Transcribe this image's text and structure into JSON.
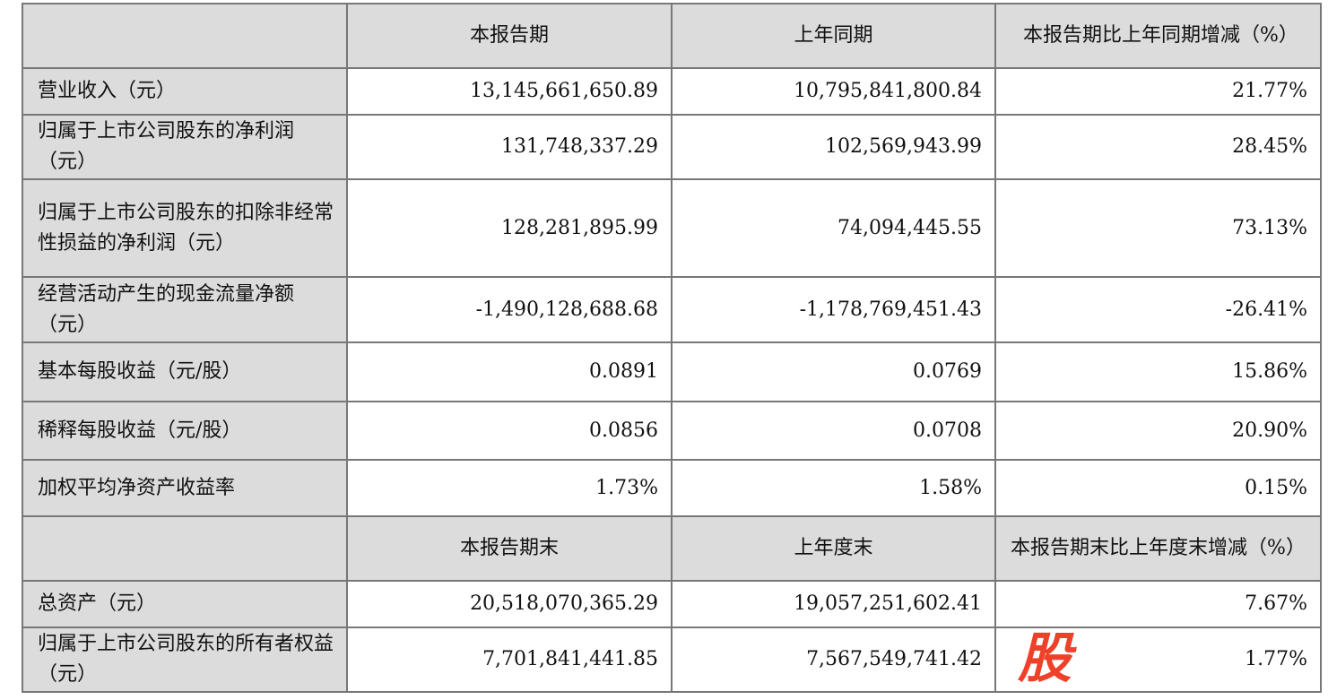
{
  "header1": {
    "col1": "",
    "col2": "本报告期",
    "col3": "上年同期",
    "col4": "本报告期比上年同期增减（%）"
  },
  "rows1": [
    {
      "label": "营业收入（元）",
      "current": "13,145,661,650.89",
      "prior": "10,795,841,800.84",
      "change": "21.77%"
    },
    {
      "label": "归属于上市公司股东的净利润（元）",
      "current": "131,748,337.29",
      "prior": "102,569,943.99",
      "change": "28.45%"
    },
    {
      "label": "归属于上市公司股东的扣除非经常性损益的净利润（元）",
      "current": "128,281,895.99",
      "prior": "74,094,445.55",
      "change": "73.13%"
    },
    {
      "label": "经营活动产生的现金流量净额（元）",
      "current": "-1,490,128,688.68",
      "prior": "-1,178,769,451.43",
      "change": "-26.41%"
    },
    {
      "label": "基本每股收益（元/股）",
      "current": "0.0891",
      "prior": "0.0769",
      "change": "15.86%"
    },
    {
      "label": "稀释每股收益（元/股）",
      "current": "0.0856",
      "prior": "0.0708",
      "change": "20.90%"
    },
    {
      "label": "加权平均净资产收益率",
      "current": "1.73%",
      "prior": "1.58%",
      "change": "0.15%"
    }
  ],
  "header2": {
    "col1": "",
    "col2": "本报告期末",
    "col3": "上年度末",
    "col4": "本报告期末比上年度末增减（%）"
  },
  "rows2": [
    {
      "label": "总资产（元）",
      "current": "20,518,070,365.29",
      "prior": "19,057,251,602.41",
      "change": "7.67%"
    },
    {
      "label": "归属于上市公司股东的所有者权益（元）",
      "current": "7,701,841,441.85",
      "prior": "7,567,549,741.42",
      "change": "1.77%"
    }
  ],
  "watermark": {
    "text": "股",
    "color": "#ef4129"
  }
}
